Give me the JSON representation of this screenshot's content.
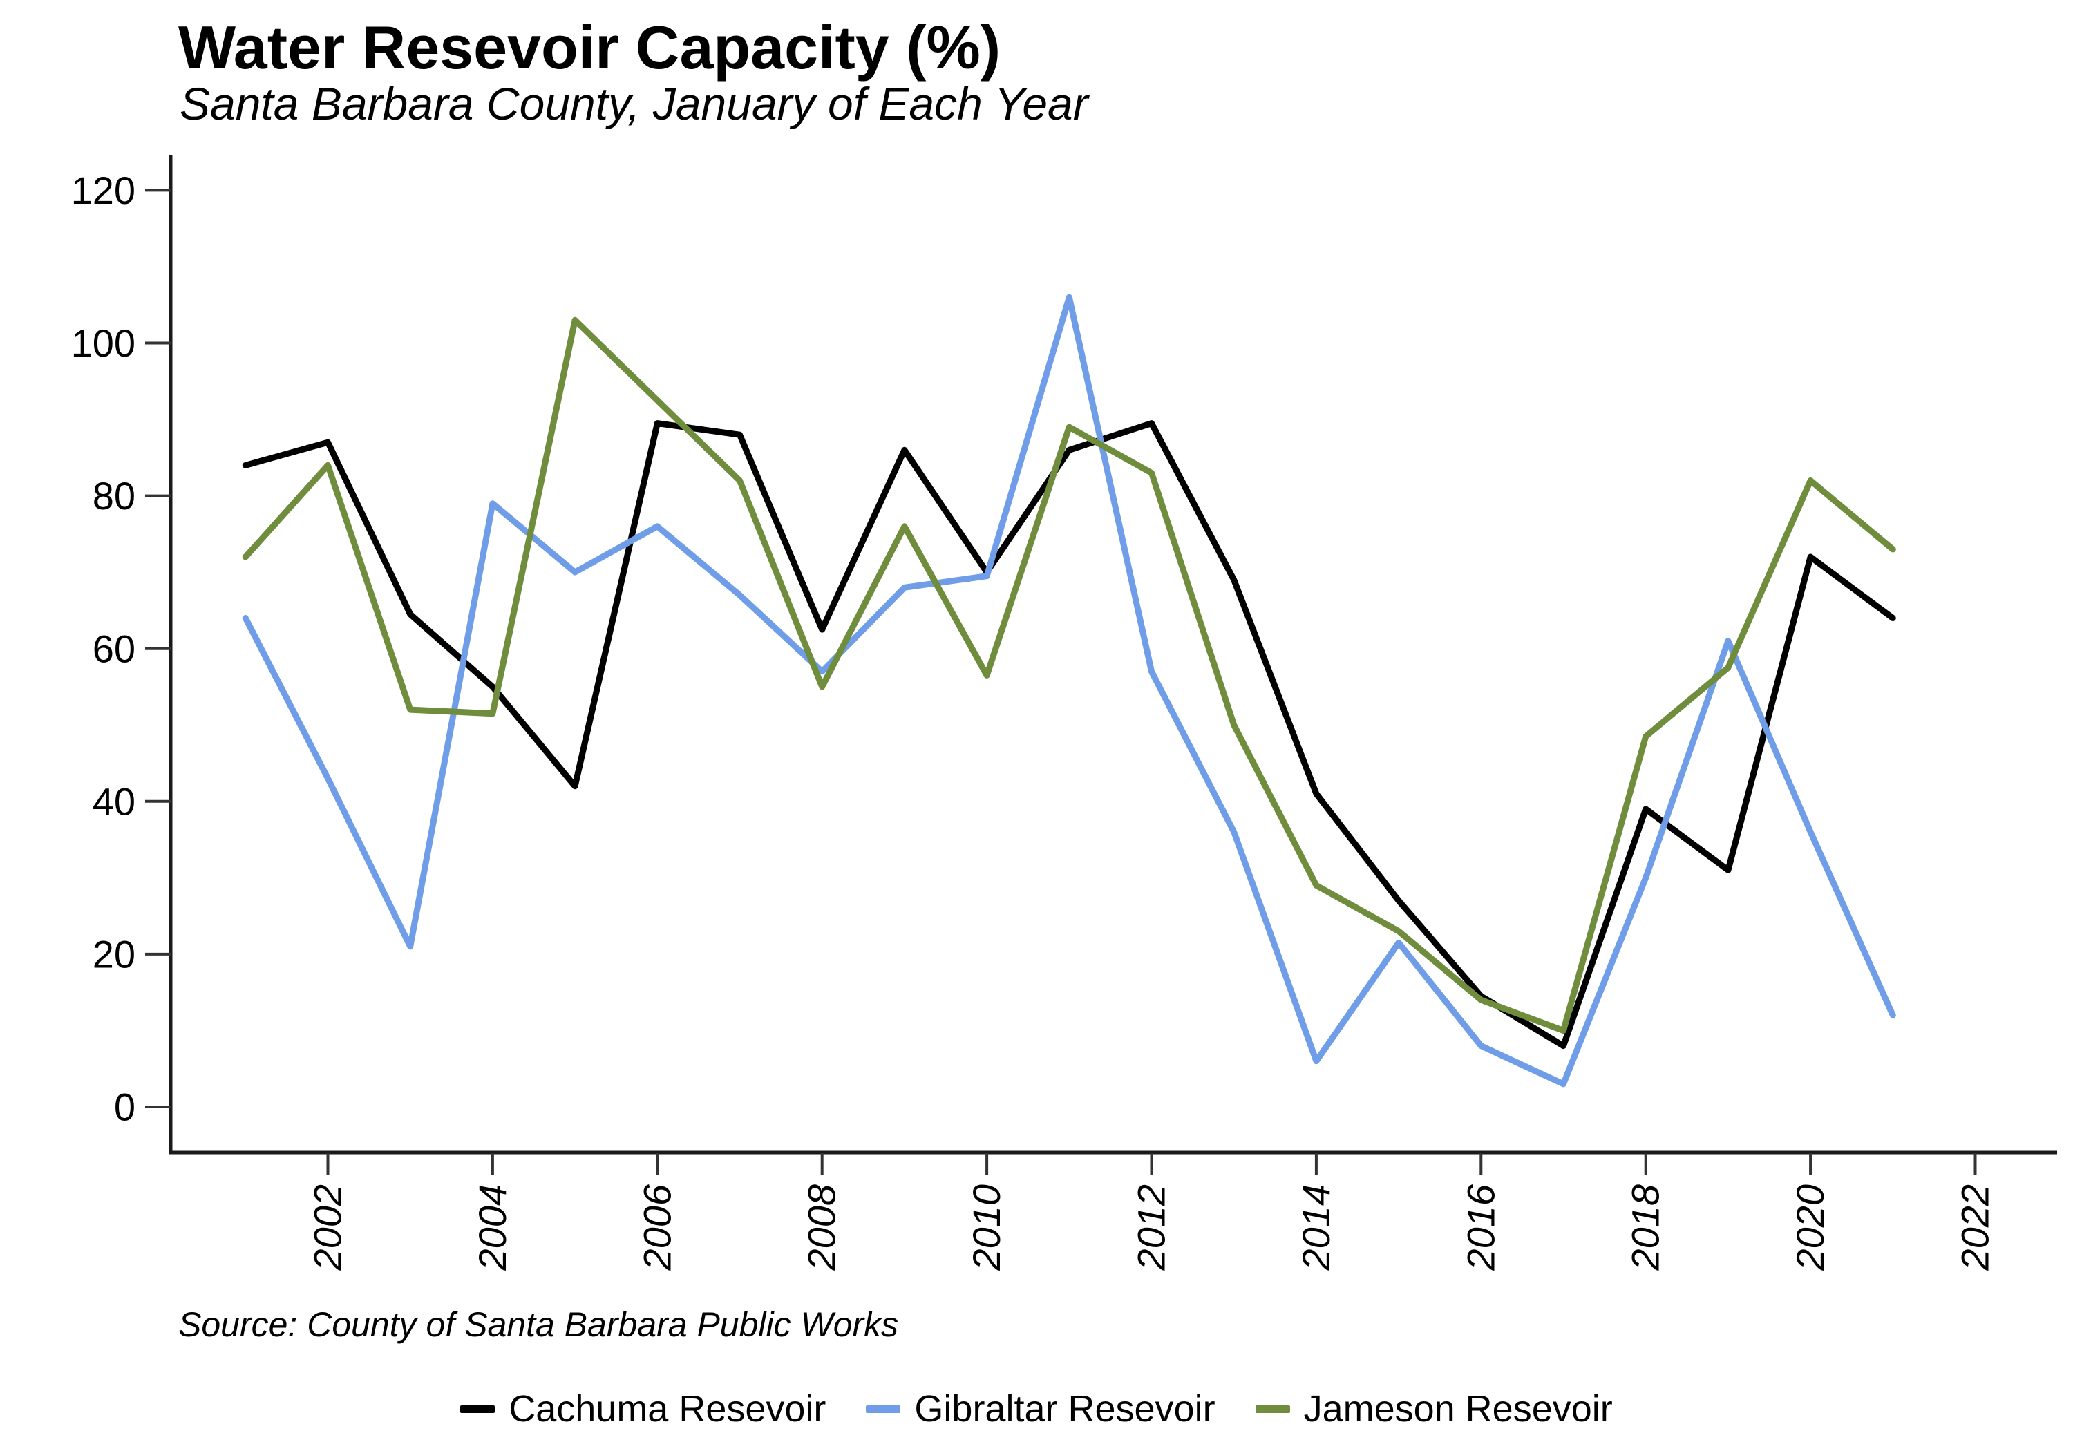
{
  "page": {
    "title": "Water Resevoir Capacity (%)",
    "subtitle": "Santa Barbara County, January of Each Year",
    "source_note": "Source: County of Santa Barbara Public Works"
  },
  "chart_data": {
    "type": "line",
    "title": "Water Resevoir Capacity (%)",
    "subtitle": "Santa Barbara County, January of Each Year",
    "xlabel": "",
    "ylabel": "",
    "x": [
      2001,
      2002,
      2003,
      2004,
      2005,
      2006,
      2007,
      2008,
      2009,
      2010,
      2011,
      2012,
      2013,
      2014,
      2015,
      2016,
      2017,
      2018,
      2019,
      2020,
      2021
    ],
    "series": [
      {
        "name": "Cachuma Resevoir",
        "color": "#000000",
        "values": [
          84,
          87,
          64.5,
          55,
          42,
          89.5,
          88,
          62.5,
          86,
          70,
          86,
          89.5,
          69,
          41,
          27,
          14.5,
          8,
          39,
          31,
          72,
          64
        ]
      },
      {
        "name": "Gibraltar Resevoir",
        "color": "#6f9de8",
        "values": [
          64,
          43,
          21,
          79,
          70,
          76,
          67,
          57,
          68,
          69.5,
          106,
          57,
          36,
          6,
          21.5,
          8,
          3,
          30,
          61,
          36,
          12
        ]
      },
      {
        "name": "Jameson Resevoir",
        "color": "#6f8d3c",
        "values": [
          72,
          84,
          52,
          51.5,
          103,
          92.5,
          82,
          55,
          76,
          56.5,
          89,
          83,
          50,
          29,
          23,
          14,
          10,
          48.5,
          57.5,
          82,
          73
        ]
      }
    ],
    "ylim": [
      0,
      120
    ],
    "yticks": [
      0,
      20,
      40,
      60,
      80,
      100,
      120
    ],
    "xticks": [
      2002,
      2004,
      2006,
      2008,
      2010,
      2012,
      2014,
      2016,
      2018,
      2020,
      2022
    ],
    "grid": false,
    "legend_position": "bottom",
    "x_tick_label_rotation_deg": 90,
    "x_tick_label_style": "italic"
  }
}
